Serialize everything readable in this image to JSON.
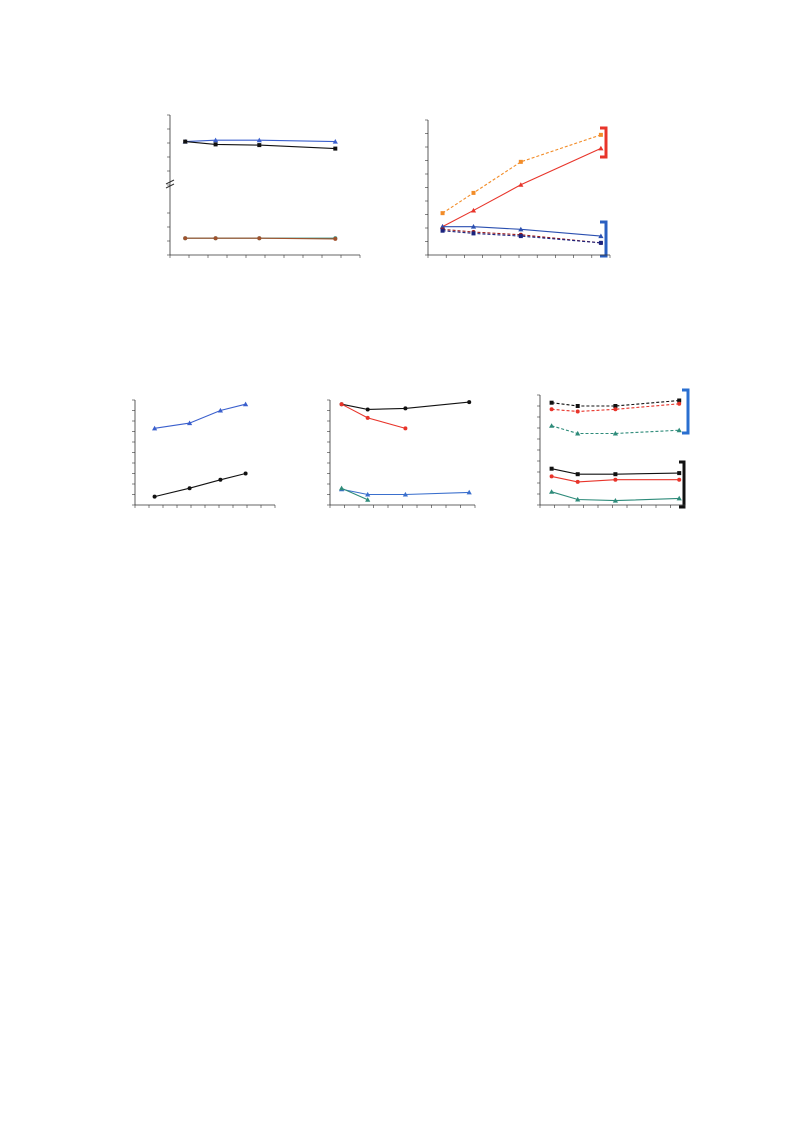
{
  "chart_data": [
    {
      "type": "line",
      "x": [
        8,
        24,
        47,
        87
      ],
      "xlim": [
        0,
        100
      ],
      "ylim": [
        0,
        100
      ],
      "xticks": [
        0,
        10,
        20,
        30,
        40,
        50,
        60,
        70,
        80,
        90,
        100
      ],
      "yticks": [
        0,
        10,
        20,
        30,
        50,
        60,
        70,
        80,
        90,
        100
      ],
      "series": [
        {
          "color": "#3a5fcd",
          "marker": "triangle",
          "dash": false,
          "values": [
            81,
            82,
            82,
            81
          ]
        },
        {
          "color": "#111111",
          "marker": "square",
          "dash": false,
          "values": [
            81,
            79,
            78.5,
            76
          ]
        },
        {
          "color": "#2e8b7a",
          "marker": "circle",
          "dash": false,
          "values": [
            12,
            12,
            12,
            12
          ]
        },
        {
          "color": "#a0522d",
          "marker": "circle",
          "dash": false,
          "values": [
            12,
            12,
            12,
            11.5
          ]
        }
      ]
    },
    {
      "type": "line",
      "x": [
        8,
        25,
        51,
        95
      ],
      "xlim": [
        0,
        100
      ],
      "ylim": [
        0,
        100
      ],
      "xticks": [
        0,
        10,
        20,
        30,
        40,
        50,
        60,
        70,
        80,
        90,
        100
      ],
      "yticks": [
        0,
        10,
        20,
        30,
        40,
        50,
        60,
        70,
        80,
        90,
        100
      ],
      "series": [
        {
          "color": "#f28c28",
          "marker": "square",
          "dash": true,
          "values": [
            31,
            46,
            69,
            89
          ]
        },
        {
          "color": "#e8342a",
          "marker": "triangle",
          "dash": false,
          "values": [
            21,
            33,
            52,
            79
          ]
        },
        {
          "color": "#2a4fb0",
          "marker": "triangle",
          "dash": false,
          "values": [
            21,
            21,
            19,
            14
          ]
        },
        {
          "color": "#9b1c1c",
          "marker": "circle",
          "dash": true,
          "values": [
            19,
            17,
            15,
            9
          ]
        },
        {
          "color": "#1a237e",
          "marker": "square",
          "dash": true,
          "values": [
            18,
            16,
            14,
            9
          ]
        }
      ]
    },
    {
      "type": "line",
      "x": [
        14,
        39,
        61,
        79
      ],
      "xlim": [
        0,
        100
      ],
      "ylim": [
        0,
        100
      ],
      "xticks": [
        0,
        10,
        20,
        30,
        40,
        50,
        60,
        70,
        80,
        90,
        100
      ],
      "yticks": [
        0,
        10,
        20,
        30,
        40,
        50,
        60,
        70,
        80,
        90,
        100
      ],
      "series": [
        {
          "color": "#3a5fcd",
          "marker": "triangle",
          "dash": false,
          "values": [
            73,
            78,
            90,
            96
          ]
        },
        {
          "color": "#111111",
          "marker": "circle",
          "dash": false,
          "values": [
            8,
            16,
            24,
            30
          ]
        }
      ]
    },
    {
      "type": "line",
      "x": [
        8,
        26,
        52,
        96
      ],
      "xlim": [
        0,
        100
      ],
      "ylim": [
        0,
        100
      ],
      "xticks": [
        0,
        10,
        20,
        30,
        40,
        50,
        60,
        70,
        80,
        90,
        100
      ],
      "yticks": [
        0,
        10,
        20,
        30,
        40,
        50,
        60,
        70,
        80,
        90,
        100
      ],
      "series": [
        {
          "color": "#111111",
          "marker": "circle",
          "dash": false,
          "values": [
            96,
            91,
            92,
            98
          ]
        },
        {
          "color": "#e8342a",
          "marker": "circle",
          "dash": false,
          "values": [
            96,
            83,
            73,
            null
          ]
        },
        {
          "color": "#3a6fcd",
          "marker": "triangle",
          "dash": false,
          "values": [
            15,
            10,
            10,
            12
          ]
        },
        {
          "color": "#2e8b7a",
          "marker": "triangle",
          "dash": false,
          "values": [
            16,
            5,
            null,
            null
          ]
        }
      ]
    },
    {
      "type": "line",
      "x": [
        8,
        26,
        52,
        96
      ],
      "xlim": [
        0,
        100
      ],
      "ylim": [
        0,
        100
      ],
      "xticks": [
        0,
        10,
        20,
        30,
        40,
        50,
        60,
        70,
        80,
        90,
        100
      ],
      "yticks": [
        0,
        10,
        20,
        30,
        40,
        50,
        60,
        70,
        80,
        90,
        100
      ],
      "series": [
        {
          "color": "#111111",
          "marker": "square",
          "dash": true,
          "values": [
            93,
            90,
            90,
            95
          ]
        },
        {
          "color": "#e8342a",
          "marker": "circle",
          "dash": true,
          "values": [
            87,
            85,
            87,
            92
          ]
        },
        {
          "color": "#2e8b7a",
          "marker": "triangle",
          "dash": true,
          "values": [
            72,
            65,
            65,
            68
          ]
        },
        {
          "color": "#111111",
          "marker": "square",
          "dash": false,
          "values": [
            33,
            28,
            28,
            29
          ]
        },
        {
          "color": "#e8342a",
          "marker": "circle",
          "dash": false,
          "values": [
            26,
            21,
            23,
            23
          ]
        },
        {
          "color": "#2e8b7a",
          "marker": "triangle",
          "dash": false,
          "values": [
            12,
            5,
            4,
            6
          ]
        }
      ]
    }
  ]
}
